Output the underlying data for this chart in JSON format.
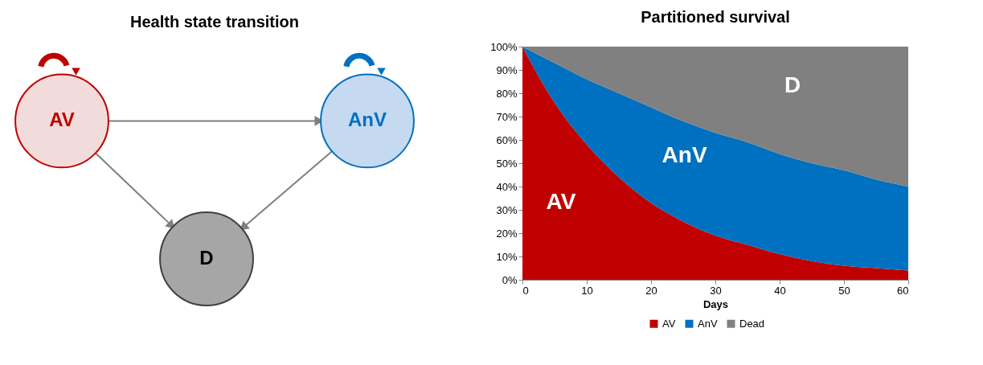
{
  "chart_data": [
    {
      "type": "other",
      "title": "Health state transition",
      "annotations": [
        "AV",
        "AnV",
        "D"
      ],
      "colors": [
        "#f2dcdb",
        "#c5d9f1",
        "#a6a6a6"
      ]
    },
    {
      "type": "area",
      "title": "Partitioned survival",
      "xlabel": "Days",
      "stacked": true,
      "x": [
        0,
        5,
        10,
        15,
        20,
        25,
        30,
        35,
        40,
        45,
        50,
        55,
        60
      ],
      "series": [
        {
          "name": "AV",
          "color": "#c00000",
          "values": [
            100,
            76,
            58,
            44,
            33,
            25,
            19,
            15,
            11,
            8,
            6,
            5,
            4
          ]
        },
        {
          "name": "AnV",
          "color": "#0070c0",
          "values": [
            0,
            17,
            28,
            36,
            41,
            43,
            44,
            44,
            43,
            42,
            41,
            38,
            36
          ]
        },
        {
          "name": "Dead",
          "color": "#808080",
          "values": [
            0,
            7,
            14,
            20,
            26,
            32,
            37,
            41,
            46,
            50,
            53,
            57,
            60
          ]
        }
      ],
      "xlim": [
        0,
        60
      ],
      "xticks": [
        0,
        10,
        20,
        30,
        40,
        50,
        60
      ],
      "ylim": [
        0,
        100
      ],
      "yticks": [
        {
          "value": 0,
          "label": "0%"
        },
        {
          "value": 10,
          "label": "10%"
        },
        {
          "value": 20,
          "label": "20%"
        },
        {
          "value": 30,
          "label": "30%"
        },
        {
          "value": 40,
          "label": "40%"
        },
        {
          "value": 50,
          "label": "50%"
        },
        {
          "value": 60,
          "label": "60%"
        },
        {
          "value": 70,
          "label": "70%"
        },
        {
          "value": 80,
          "label": "80%"
        },
        {
          "value": 90,
          "label": "90%"
        },
        {
          "value": 100,
          "label": "100%"
        }
      ],
      "annotations": [
        "AV",
        "AnV",
        "D"
      ],
      "grid": false,
      "legend": "bottom"
    }
  ]
}
